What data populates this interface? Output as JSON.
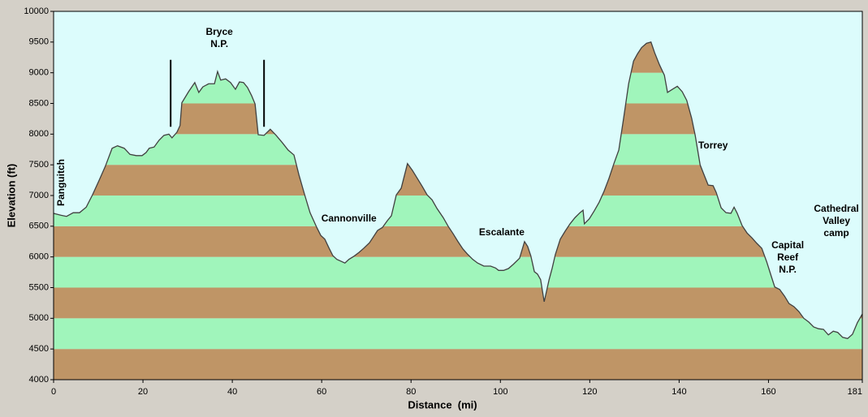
{
  "chart_data": {
    "type": "area",
    "x_label": "Distance  (mi)",
    "y_label": "Elevation (ft)",
    "xlim": [
      0,
      181
    ],
    "ylim": [
      4000,
      10000
    ],
    "xticks": [
      0,
      20,
      40,
      60,
      80,
      100,
      120,
      140,
      160,
      181
    ],
    "yticks": [
      4000,
      4500,
      5000,
      5500,
      6000,
      6500,
      7000,
      7500,
      8000,
      8500,
      9000,
      9500,
      10000
    ],
    "band_colors": [
      "#bf9566",
      "#a0f5bb"
    ],
    "background": "#dcfcfc",
    "line_color": "#404040",
    "x": [
      0,
      1.6,
      2.9,
      4.4,
      5.8,
      7.3,
      8.7,
      10.2,
      11.6,
      13.1,
      14.3,
      15.8,
      17.1,
      18.5,
      19.8,
      20.7,
      21.4,
      22.5,
      23.6,
      24.7,
      25.8,
      26.5,
      27.6,
      28.3,
      28.7,
      30.2,
      31.6,
      32.5,
      33.4,
      34.7,
      36.0,
      36.7,
      37.4,
      38.5,
      39.6,
      40.7,
      41.6,
      42.5,
      43.4,
      44.3,
      45.1,
      45.8,
      47.1,
      48.5,
      49.8,
      51.2,
      52.5,
      53.8,
      54.9,
      56.2,
      57.4,
      58.9,
      59.8,
      60.7,
      61.6,
      62.5,
      63.4,
      64.3,
      65.2,
      66.1,
      67.2,
      68.3,
      69.4,
      70.7,
      71.6,
      72.5,
      73.6,
      74.7,
      75.6,
      76.7,
      77.8,
      79.2,
      80.3,
      81.4,
      82.5,
      83.6,
      84.7,
      85.8,
      87.2,
      88.3,
      89.4,
      90.5,
      91.6,
      92.7,
      93.8,
      94.9,
      96.3,
      97.8,
      98.9,
      99.6,
      100.7,
      101.8,
      102.9,
      104.3,
      105.4,
      106.1,
      106.8,
      107.6,
      108.3,
      109.0,
      109.8,
      110.9,
      111.6,
      112.3,
      113.4,
      114.5,
      115.6,
      116.7,
      117.8,
      118.5,
      118.8,
      119.9,
      121.0,
      122.1,
      123.2,
      124.3,
      125.4,
      126.5,
      127.6,
      128.7,
      129.8,
      130.7,
      131.6,
      132.7,
      133.7,
      134.5,
      135.6,
      136.7,
      137.4,
      138.5,
      139.6,
      140.7,
      141.7,
      142.8,
      143.6,
      144.7,
      145.4,
      146.5,
      147.6,
      148.3,
      149.4,
      150.5,
      151.6,
      152.3,
      153.0,
      154.1,
      155.2,
      156.3,
      157.4,
      158.5,
      159.6,
      160.6,
      161.4,
      162.5,
      163.6,
      164.6,
      165.7,
      166.8,
      167.9,
      169.0,
      170.1,
      171.2,
      172.3,
      173.4,
      174.5,
      175.5,
      176.6,
      177.7,
      178.8,
      179.9,
      181
    ],
    "values": [
      6710,
      6680,
      6660,
      6720,
      6720,
      6810,
      7010,
      7250,
      7480,
      7770,
      7810,
      7770,
      7670,
      7650,
      7650,
      7700,
      7770,
      7790,
      7900,
      7980,
      8000,
      7940,
      8030,
      8140,
      8510,
      8690,
      8840,
      8680,
      8770,
      8820,
      8820,
      9020,
      8880,
      8900,
      8840,
      8730,
      8850,
      8840,
      8760,
      8630,
      8490,
      7990,
      7980,
      8080,
      7980,
      7860,
      7740,
      7660,
      7340,
      7010,
      6720,
      6480,
      6350,
      6290,
      6150,
      6020,
      5960,
      5930,
      5900,
      5960,
      6010,
      6070,
      6140,
      6230,
      6330,
      6430,
      6480,
      6590,
      6670,
      7010,
      7120,
      7520,
      7410,
      7280,
      7150,
      7010,
      6930,
      6790,
      6640,
      6500,
      6380,
      6250,
      6130,
      6040,
      5960,
      5900,
      5850,
      5850,
      5820,
      5780,
      5780,
      5810,
      5880,
      5980,
      6250,
      6170,
      6020,
      5760,
      5720,
      5630,
      5270,
      5630,
      5820,
      6040,
      6290,
      6420,
      6540,
      6640,
      6720,
      6760,
      6540,
      6620,
      6750,
      6890,
      7070,
      7280,
      7520,
      7740,
      8270,
      8820,
      9190,
      9310,
      9410,
      9480,
      9500,
      9330,
      9130,
      8960,
      8680,
      8730,
      8780,
      8690,
      8550,
      8260,
      7980,
      7500,
      7370,
      7170,
      7160,
      7050,
      6800,
      6720,
      6710,
      6810,
      6710,
      6510,
      6390,
      6310,
      6220,
      6140,
      5920,
      5690,
      5510,
      5470,
      5360,
      5240,
      5190,
      5110,
      5000,
      4940,
      4860,
      4830,
      4820,
      4730,
      4790,
      4770,
      4690,
      4670,
      4740,
      4930,
      5070
    ],
    "boundaries": [
      {
        "x": 26.2,
        "ylim": [
          8120,
          9210
        ]
      },
      {
        "x": 47.1,
        "ylim": [
          8120,
          9210
        ]
      }
    ],
    "annotations": [
      {
        "lines": [
          "Panguitch"
        ],
        "x": 1.8,
        "y": 7211,
        "rotate": true
      },
      {
        "lines": [
          "Bryce",
          "N.P."
        ],
        "x": 37.1,
        "y": 9656
      },
      {
        "lines": [
          "Cannonville"
        ],
        "x": 66.1,
        "y": 6617
      },
      {
        "lines": [
          "Escalante"
        ],
        "x": 100.3,
        "y": 6392
      },
      {
        "lines": [
          "Torrey"
        ],
        "x": 147.6,
        "y": 7806
      },
      {
        "lines": [
          "Capital",
          "Reef",
          "N.P."
        ],
        "x": 164.3,
        "y": 6180
      },
      {
        "lines": [
          "Cathedral",
          "Valley",
          "camp"
        ],
        "x": 175.2,
        "y": 6775
      }
    ]
  }
}
